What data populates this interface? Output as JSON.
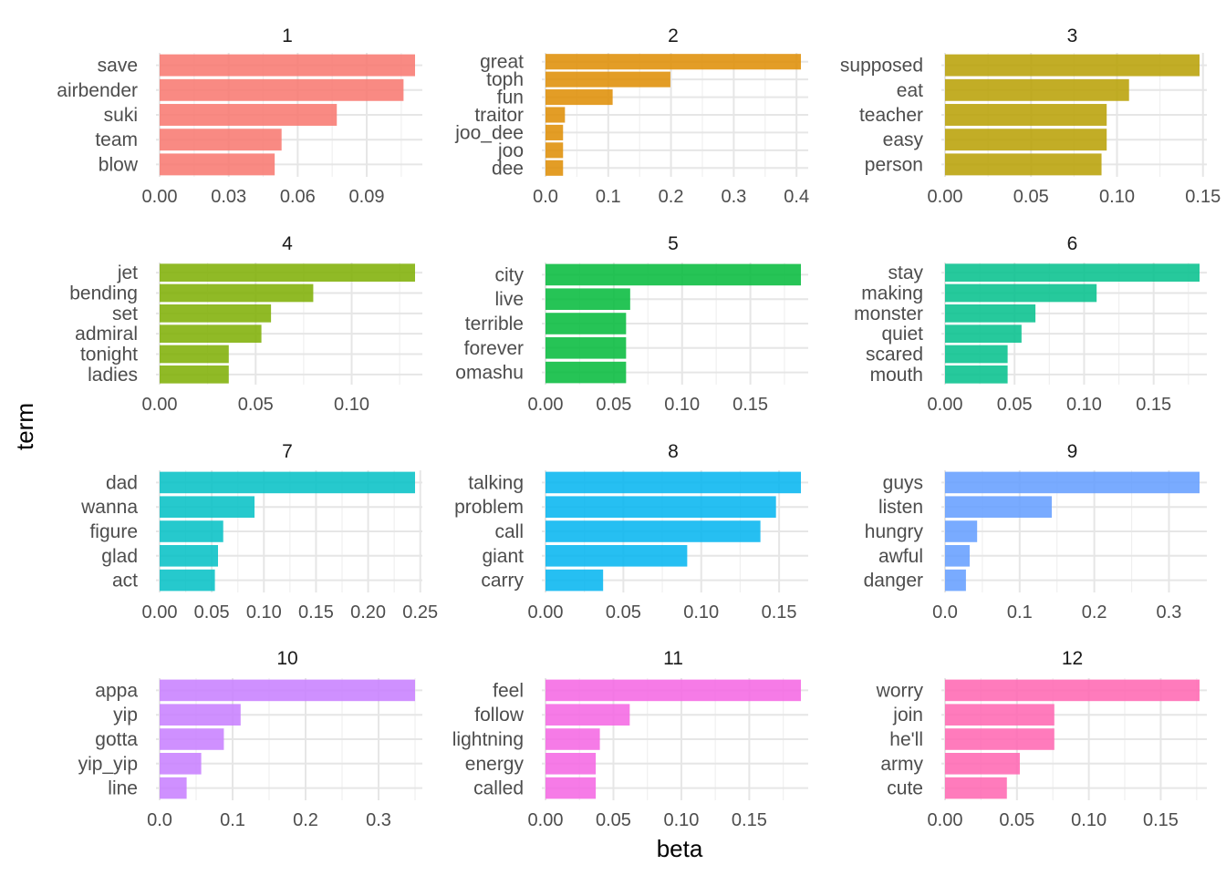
{
  "chart_data": {
    "type": "bar",
    "orientation": "horizontal",
    "facet_layout": "4x3",
    "xlabel": "beta",
    "ylabel": "term",
    "grid": true,
    "panels": [
      {
        "title": "1",
        "color": "#F8766D",
        "terms": [
          "save",
          "airbender",
          "suki",
          "team",
          "blow"
        ],
        "values": [
          0.111,
          0.106,
          0.077,
          0.053,
          0.05
        ],
        "xlim": [
          0,
          0.111
        ],
        "ticks": [
          "0.00",
          "0.03",
          "0.06",
          "0.09"
        ],
        "tick_values": [
          0,
          0.03,
          0.06,
          0.09
        ]
      },
      {
        "title": "2",
        "color": "#DE8C00",
        "terms": [
          "great",
          "toph",
          "fun",
          "traitor",
          "joo_dee",
          "joo",
          "dee"
        ],
        "values": [
          0.407,
          0.199,
          0.107,
          0.031,
          0.028,
          0.028,
          0.028
        ],
        "xlim": [
          0,
          0.407
        ],
        "ticks": [
          "0.0",
          "0.1",
          "0.2",
          "0.3",
          "0.4"
        ],
        "tick_values": [
          0,
          0.1,
          0.2,
          0.3,
          0.4
        ]
      },
      {
        "title": "3",
        "color": "#B79F00",
        "terms": [
          "supposed",
          "eat",
          "teacher",
          "easy",
          "person"
        ],
        "values": [
          0.148,
          0.107,
          0.094,
          0.094,
          0.091
        ],
        "xlim": [
          0,
          0.148
        ],
        "ticks": [
          "0.00",
          "0.05",
          "0.10",
          "0.15"
        ],
        "tick_values": [
          0,
          0.05,
          0.1,
          0.15
        ]
      },
      {
        "title": "4",
        "color": "#7CAE00",
        "terms": [
          "jet",
          "bending",
          "set",
          "admiral",
          "tonight",
          "ladies"
        ],
        "values": [
          0.133,
          0.08,
          0.058,
          0.053,
          0.036,
          0.036
        ],
        "xlim": [
          0,
          0.133
        ],
        "ticks": [
          "0.00",
          "0.05",
          "0.10"
        ],
        "tick_values": [
          0,
          0.05,
          0.1
        ]
      },
      {
        "title": "5",
        "color": "#00BA38",
        "terms": [
          "city",
          "live",
          "terrible",
          "forever",
          "omashu"
        ],
        "values": [
          0.187,
          0.062,
          0.059,
          0.059,
          0.059
        ],
        "xlim": [
          0,
          0.187
        ],
        "ticks": [
          "0.00",
          "0.05",
          "0.10",
          "0.15"
        ],
        "tick_values": [
          0,
          0.05,
          0.1,
          0.15
        ]
      },
      {
        "title": "6",
        "color": "#00C08B",
        "terms": [
          "stay",
          "making",
          "monster",
          "quiet",
          "scared",
          "mouth"
        ],
        "values": [
          0.183,
          0.109,
          0.065,
          0.055,
          0.045,
          0.045
        ],
        "xlim": [
          0,
          0.183
        ],
        "ticks": [
          "0.00",
          "0.05",
          "0.10",
          "0.15"
        ],
        "tick_values": [
          0,
          0.05,
          0.1,
          0.15
        ]
      },
      {
        "title": "7",
        "color": "#00BFC4",
        "terms": [
          "dad",
          "wanna",
          "figure",
          "glad",
          "act"
        ],
        "values": [
          0.245,
          0.091,
          0.061,
          0.056,
          0.053
        ],
        "xlim": [
          0,
          0.245
        ],
        "ticks": [
          "0.00",
          "0.05",
          "0.10",
          "0.15",
          "0.20",
          "0.25"
        ],
        "tick_values": [
          0,
          0.05,
          0.1,
          0.15,
          0.2,
          0.25
        ]
      },
      {
        "title": "8",
        "color": "#00B4F0",
        "terms": [
          "talking",
          "problem",
          "call",
          "giant",
          "carry"
        ],
        "values": [
          0.164,
          0.148,
          0.138,
          0.091,
          0.037
        ],
        "xlim": [
          0,
          0.164
        ],
        "ticks": [
          "0.00",
          "0.05",
          "0.10",
          "0.15"
        ],
        "tick_values": [
          0,
          0.05,
          0.1,
          0.15
        ]
      },
      {
        "title": "9",
        "color": "#619CFF",
        "terms": [
          "guys",
          "listen",
          "hungry",
          "awful",
          "danger"
        ],
        "values": [
          0.341,
          0.143,
          0.043,
          0.033,
          0.028
        ],
        "xlim": [
          0,
          0.341
        ],
        "ticks": [
          "0.0",
          "0.1",
          "0.2",
          "0.3"
        ],
        "tick_values": [
          0,
          0.1,
          0.2,
          0.3
        ]
      },
      {
        "title": "10",
        "color": "#C77CFF",
        "terms": [
          "appa",
          "yip",
          "gotta",
          "yip_yip",
          "line"
        ],
        "values": [
          0.35,
          0.111,
          0.088,
          0.057,
          0.037
        ],
        "xlim": [
          0,
          0.35
        ],
        "ticks": [
          "0.0",
          "0.1",
          "0.2",
          "0.3"
        ],
        "tick_values": [
          0,
          0.1,
          0.2,
          0.3
        ]
      },
      {
        "title": "11",
        "color": "#F564E3",
        "terms": [
          "feel",
          "follow",
          "lightning",
          "energy",
          "called"
        ],
        "values": [
          0.188,
          0.062,
          0.04,
          0.037,
          0.037
        ],
        "xlim": [
          0,
          0.188
        ],
        "ticks": [
          "0.00",
          "0.05",
          "0.10",
          "0.15"
        ],
        "tick_values": [
          0,
          0.05,
          0.1,
          0.15
        ]
      },
      {
        "title": "12",
        "color": "#FF64B0",
        "terms": [
          "worry",
          "join",
          "he'll",
          "army",
          "cute"
        ],
        "values": [
          0.177,
          0.076,
          0.076,
          0.052,
          0.043
        ],
        "xlim": [
          0,
          0.177
        ],
        "ticks": [
          "0.00",
          "0.05",
          "0.10",
          "0.15"
        ],
        "tick_values": [
          0,
          0.05,
          0.1,
          0.15
        ]
      }
    ]
  }
}
